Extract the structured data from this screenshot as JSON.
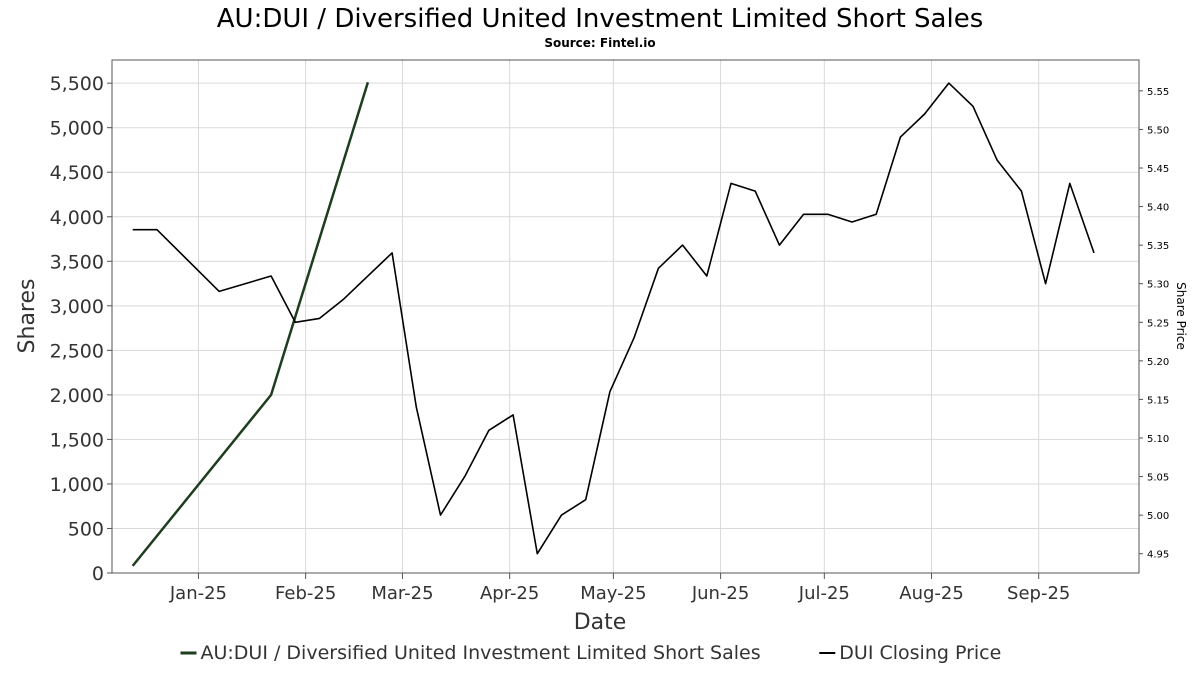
{
  "chart_data": {
    "type": "line",
    "title": "AU:DUI / Diversified United Investment Limited Short Sales",
    "subtitle": "Source: Fintel.io",
    "xlabel": "Date",
    "ylabel": "Shares",
    "y2label": "Share Price",
    "x_ticks": [
      "Jan-25",
      "Feb-25",
      "Mar-25",
      "Apr-25",
      "May-25",
      "Jun-25",
      "Jul-25",
      "Aug-25",
      "Sep-25"
    ],
    "y_ticks": [
      "0",
      "500",
      "1,000",
      "1,500",
      "2,000",
      "2,500",
      "3,000",
      "3,500",
      "4,000",
      "4,500",
      "5,000",
      "5,500"
    ],
    "y2_ticks": [
      "4.95",
      "5.00",
      "5.05",
      "5.10",
      "5.15",
      "5.20",
      "5.25",
      "5.30",
      "5.35",
      "5.40",
      "5.45",
      "5.50",
      "5.55"
    ],
    "xlim": [
      "2024-12-07",
      "2025-09-30"
    ],
    "ylim": [
      0,
      5760
    ],
    "y2lim": [
      4.925,
      5.59
    ],
    "grid": true,
    "legend_position": "bottom-center",
    "series": [
      {
        "name": "AU:DUI / Diversified United Investment Limited Short Sales",
        "axis": "left",
        "color": "#1e3d1e",
        "points": [
          [
            "2024-12-13",
            80
          ],
          [
            "2025-01-22",
            2000
          ],
          [
            "2025-02-19",
            5510
          ]
        ]
      },
      {
        "name": "DUI Closing Price",
        "axis": "right",
        "color": "#000000",
        "points": [
          [
            "2024-12-13",
            5.37
          ],
          [
            "2024-12-20",
            5.37
          ],
          [
            "2025-01-07",
            5.29
          ],
          [
            "2025-01-22",
            5.31
          ],
          [
            "2025-01-29",
            5.25
          ],
          [
            "2025-02-05",
            5.255
          ],
          [
            "2025-02-12",
            5.28
          ],
          [
            "2025-02-26",
            5.34
          ],
          [
            "2025-03-05",
            5.14
          ],
          [
            "2025-03-12",
            5.0
          ],
          [
            "2025-03-19",
            5.05
          ],
          [
            "2025-03-26",
            5.11
          ],
          [
            "2025-04-02",
            5.13
          ],
          [
            "2025-04-09",
            4.95
          ],
          [
            "2025-04-16",
            5.0
          ],
          [
            "2025-04-23",
            5.02
          ],
          [
            "2025-04-30",
            5.16
          ],
          [
            "2025-05-07",
            5.23
          ],
          [
            "2025-05-14",
            5.32
          ],
          [
            "2025-05-21",
            5.35
          ],
          [
            "2025-05-28",
            5.31
          ],
          [
            "2025-06-04",
            5.43
          ],
          [
            "2025-06-11",
            5.42
          ],
          [
            "2025-06-18",
            5.35
          ],
          [
            "2025-06-25",
            5.39
          ],
          [
            "2025-07-02",
            5.39
          ],
          [
            "2025-07-09",
            5.38
          ],
          [
            "2025-07-16",
            5.39
          ],
          [
            "2025-07-23",
            5.49
          ],
          [
            "2025-07-30",
            5.52
          ],
          [
            "2025-08-06",
            5.56
          ],
          [
            "2025-08-13",
            5.53
          ],
          [
            "2025-08-20",
            5.46
          ],
          [
            "2025-08-27",
            5.42
          ],
          [
            "2025-09-03",
            5.3
          ],
          [
            "2025-09-10",
            5.43
          ],
          [
            "2025-09-17",
            5.34
          ]
        ]
      }
    ]
  }
}
